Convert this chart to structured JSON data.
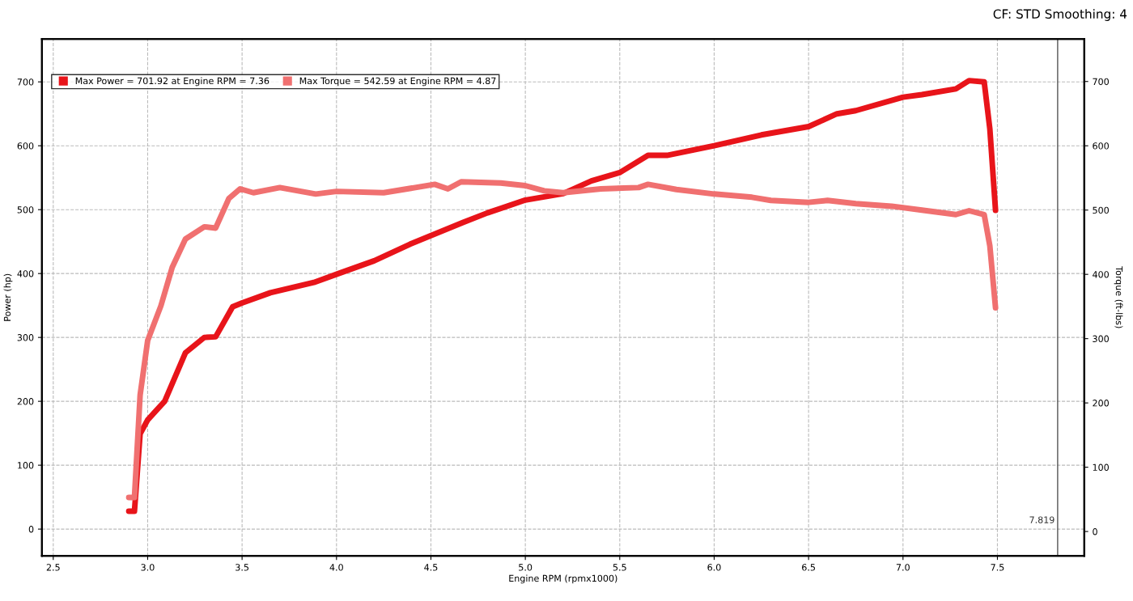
{
  "chart_data": {
    "type": "line",
    "xlabel": "Engine RPM (rpmx1000)",
    "ylabel": "Power (hp)",
    "y2label": "Torque (ft-lbs)",
    "annotations": [
      "CF: STD Smoothing: 4"
    ],
    "xlim": [
      2.44,
      7.96
    ],
    "xticks": [
      {
        "value": 2.5,
        "label": "2.5"
      },
      {
        "value": 3.0,
        "label": "3.0"
      },
      {
        "value": 3.5,
        "label": "3.5"
      },
      {
        "value": 4.0,
        "label": "4.0"
      },
      {
        "value": 4.5,
        "label": "4.5"
      },
      {
        "value": 5.0,
        "label": "5.0"
      },
      {
        "value": 5.5,
        "label": "5.5"
      },
      {
        "value": 6.0,
        "label": "6.0"
      },
      {
        "value": 6.5,
        "label": "6.5"
      },
      {
        "value": 7.0,
        "label": "7.0"
      },
      {
        "value": 7.5,
        "label": "7.5"
      }
    ],
    "ylim": [
      -42,
      767
    ],
    "yticks": [
      0,
      100,
      200,
      300,
      400,
      500,
      600,
      700
    ],
    "y2lim": [
      -38,
      766
    ],
    "y2ticks": [
      0,
      100,
      200,
      300,
      400,
      500,
      600,
      700
    ],
    "grid": true,
    "legend": "top left",
    "marker": "none",
    "line_style": "solid",
    "ref_lines": [
      {
        "axis": "x",
        "value": 7.819,
        "label": "7.819",
        "color": "#555555"
      }
    ],
    "series": [
      {
        "name": "Max Power = 701.92 at Engine RPM = 7.36",
        "color": "#e8141a",
        "x": [
          2.9,
          2.93,
          2.96,
          3.0,
          3.09,
          3.2,
          3.3,
          3.36,
          3.45,
          3.5,
          3.65,
          3.88,
          4.02,
          4.2,
          4.39,
          4.67,
          4.8,
          5.0,
          5.2,
          5.35,
          5.5,
          5.65,
          5.75,
          6.0,
          6.25,
          6.5,
          6.65,
          6.75,
          7.0,
          7.1,
          7.28,
          7.35,
          7.43,
          7.46,
          7.49
        ],
        "values": [
          28,
          28,
          149,
          171,
          200,
          276,
          300,
          301,
          348,
          354,
          370,
          386,
          401,
          420,
          446,
          480,
          495,
          515,
          525,
          545,
          558,
          585,
          585,
          600,
          617,
          630,
          650,
          655,
          676,
          680,
          689,
          702,
          700,
          626,
          499
        ]
      },
      {
        "name": "Max Torque = 542.59 at Engine RPM = 4.87",
        "color": "#f07070",
        "axis": "y2",
        "x": [
          2.9,
          2.93,
          2.96,
          3.0,
          3.07,
          3.13,
          3.2,
          3.3,
          3.36,
          3.43,
          3.49,
          3.56,
          3.7,
          3.89,
          4.0,
          4.25,
          4.52,
          4.59,
          4.66,
          4.87,
          5.0,
          5.1,
          5.2,
          5.4,
          5.6,
          5.65,
          5.8,
          6.0,
          6.2,
          6.3,
          6.5,
          6.6,
          6.75,
          6.94,
          7.1,
          7.28,
          7.35,
          7.43,
          7.46,
          7.49
        ],
        "values": [
          53,
          53,
          212,
          297,
          351,
          411,
          455,
          474,
          472,
          518,
          533,
          527,
          535,
          525,
          529,
          527,
          540,
          533,
          544,
          542,
          538,
          530,
          527,
          533,
          535,
          540,
          532,
          525,
          520,
          515,
          512,
          515,
          510,
          506,
          500,
          493,
          499,
          493,
          444,
          348
        ]
      }
    ]
  }
}
